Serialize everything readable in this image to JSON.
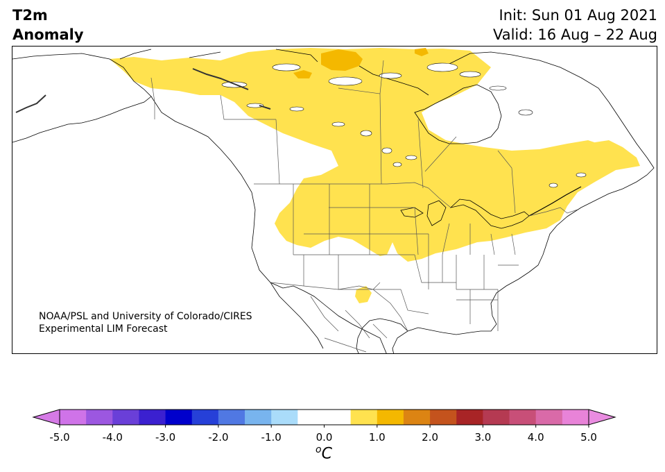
{
  "title": {
    "left_line1": "T2m",
    "left_line2": "Anomaly",
    "init": "Init: Sun 01 Aug 2021",
    "valid": "Valid: 16 Aug – 22 Aug"
  },
  "map": {
    "region": "North America",
    "credit_line1": "NOAA/PSL and University of Colorado/CIRES",
    "credit_line2": "Experimental LIM Forecast"
  },
  "colorbar": {
    "unit": "oC",
    "unit_sup": "o",
    "unit_main": "C",
    "tick_labels": [
      "-5.0",
      "-4.0",
      "-3.0",
      "-2.0",
      "-1.0",
      "0.0",
      "1.0",
      "2.0",
      "3.0",
      "4.0",
      "5.0"
    ],
    "colors": [
      "#cf73e8",
      "#9c57e0",
      "#6a3fd8",
      "#3b20d0",
      "#0000cc",
      "#2640d8",
      "#5078e3",
      "#78b4ee",
      "#aadcfa",
      "#ffffff",
      "#ffffff",
      "#ffe24f",
      "#f4b800",
      "#dc8413",
      "#c4531d",
      "#a82426",
      "#b53a52",
      "#c84f78",
      "#d96aa8",
      "#e883d8"
    ],
    "under_color": "#d57ae6",
    "over_color": "#e98ce0"
  }
}
